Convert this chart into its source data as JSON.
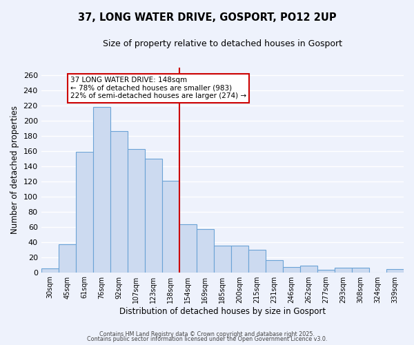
{
  "title": "37, LONG WATER DRIVE, GOSPORT, PO12 2UP",
  "subtitle": "Size of property relative to detached houses in Gosport",
  "xlabel": "Distribution of detached houses by size in Gosport",
  "ylabel": "Number of detached properties",
  "categories": [
    "30sqm",
    "45sqm",
    "61sqm",
    "76sqm",
    "92sqm",
    "107sqm",
    "123sqm",
    "138sqm",
    "154sqm",
    "169sqm",
    "185sqm",
    "200sqm",
    "215sqm",
    "231sqm",
    "246sqm",
    "262sqm",
    "277sqm",
    "293sqm",
    "308sqm",
    "324sqm",
    "339sqm"
  ],
  "values": [
    5,
    37,
    159,
    218,
    186,
    163,
    150,
    121,
    63,
    57,
    35,
    35,
    30,
    16,
    7,
    9,
    3,
    6,
    6,
    0,
    4
  ],
  "bar_color": "#ccdaf0",
  "bar_edge_color": "#6ba3d6",
  "ylim": [
    0,
    270
  ],
  "yticks": [
    0,
    20,
    40,
    60,
    80,
    100,
    120,
    140,
    160,
    180,
    200,
    220,
    240,
    260
  ],
  "vline_color": "#cc0000",
  "annotation_text": "37 LONG WATER DRIVE: 148sqm\n← 78% of detached houses are smaller (983)\n22% of semi-detached houses are larger (274) →",
  "annotation_box_color": "#ffffff",
  "annotation_box_edge": "#cc0000",
  "footer_line1": "Contains HM Land Registry data © Crown copyright and database right 2025.",
  "footer_line2": "Contains public sector information licensed under the Open Government Licence v3.0.",
  "background_color": "#eef2fc",
  "grid_color": "#ffffff"
}
